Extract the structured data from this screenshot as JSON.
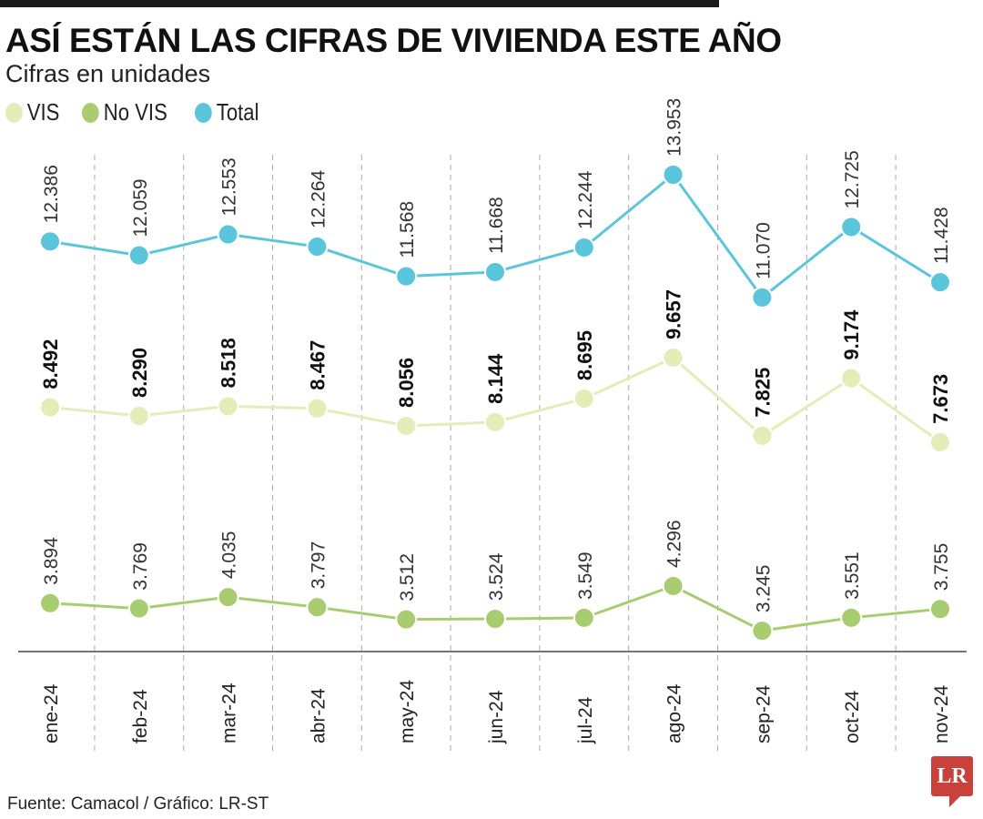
{
  "title": "ASÍ ESTÁN LAS CIFRAS DE VIVIENDA ESTE AÑO",
  "subtitle": "Cifras en unidades",
  "source": "Fuente: Camacol / Gráfico: LR-ST",
  "logo": "LR",
  "chart_data": {
    "type": "line",
    "categories": [
      "ene-24",
      "feb-24",
      "mar-24",
      "abr-24",
      "may-24",
      "jun-24",
      "jul-24",
      "ago-24",
      "sep-24",
      "oct-24",
      "nov-24"
    ],
    "series": [
      {
        "name": "VIS",
        "color": "#e4edb7",
        "labels": [
          "8.492",
          "8.290",
          "8.518",
          "8.467",
          "8.056",
          "8.144",
          "8.695",
          "9.657",
          "7.825",
          "9.174",
          "7.673"
        ],
        "values": [
          8492,
          8290,
          8518,
          8467,
          8056,
          8144,
          8695,
          9657,
          7825,
          9174,
          7673
        ]
      },
      {
        "name": "No VIS",
        "color": "#a8cc70",
        "labels": [
          "3.894",
          "3.769",
          "4.035",
          "3.797",
          "3.512",
          "3.524",
          "3.549",
          "4.296",
          "3.245",
          "3.551",
          "3.755"
        ],
        "values": [
          3894,
          3769,
          4035,
          3797,
          3512,
          3524,
          3549,
          4296,
          3245,
          3551,
          3755
        ]
      },
      {
        "name": "Total",
        "color": "#5bc5db",
        "labels": [
          "12.386",
          "12.059",
          "12.553",
          "12.264",
          "11.568",
          "11.668",
          "12.244",
          "13.953",
          "11.070",
          "12.725",
          "11.428"
        ],
        "values": [
          12386,
          12059,
          12553,
          12264,
          11568,
          11668,
          12244,
          13953,
          11070,
          12725,
          11428
        ]
      }
    ],
    "grid": "vertical dashed",
    "legend": "top-left"
  }
}
